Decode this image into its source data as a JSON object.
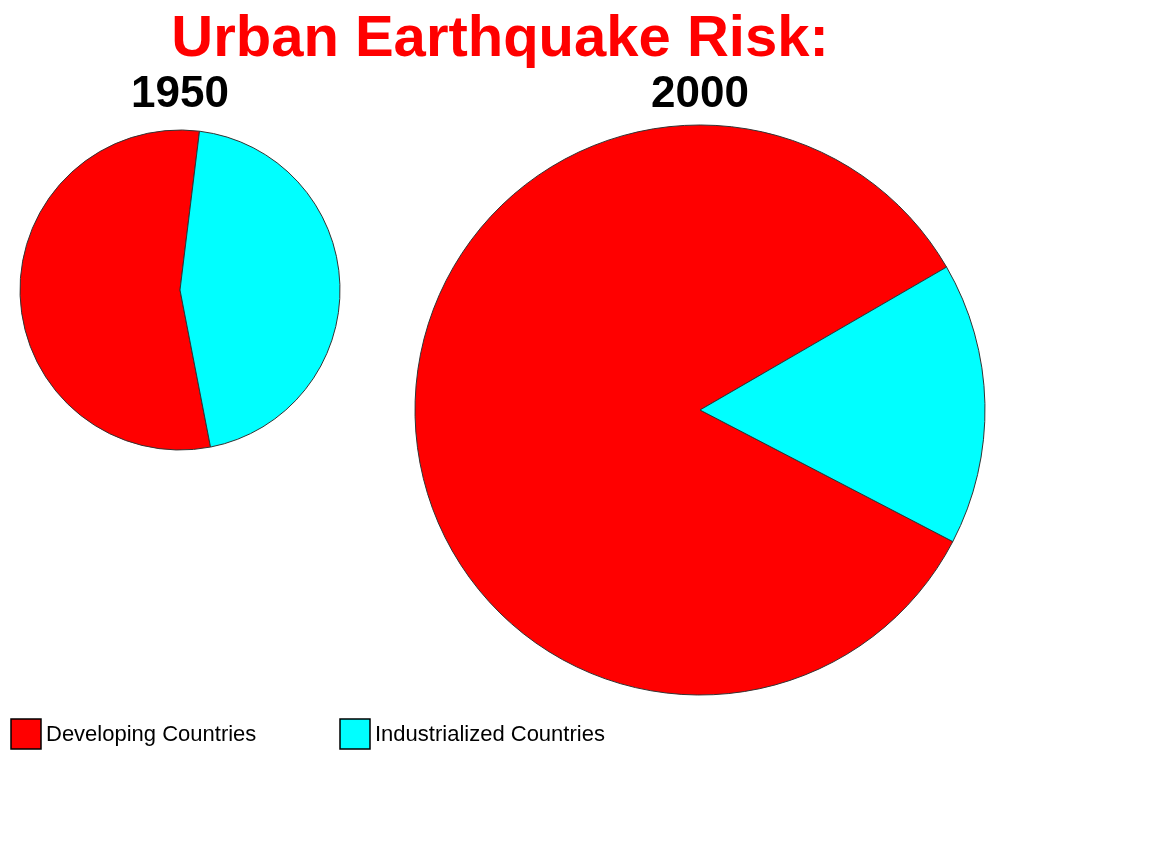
{
  "chart_data": {
    "type": "pie",
    "title": "Urban Earthquake Risk:",
    "categories": [
      "Developing Countries",
      "Industrialized Countries"
    ],
    "colors": [
      "#ff0000",
      "#00ffff"
    ],
    "legend": "bottom",
    "series": [
      {
        "name": "1950",
        "values": [
          55,
          45
        ]
      },
      {
        "name": "2000",
        "values": [
          84,
          16
        ]
      }
    ]
  }
}
